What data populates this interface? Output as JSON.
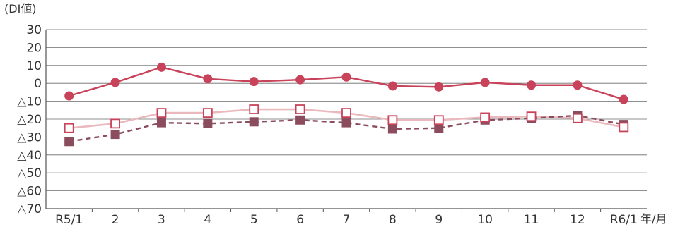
{
  "chart_data": {
    "type": "line",
    "ylabel": "(DI値)",
    "xlabel_unit": "年/月",
    "categories": [
      "R5/1",
      "2",
      "3",
      "4",
      "5",
      "6",
      "7",
      "8",
      "9",
      "10",
      "11",
      "12",
      "R6/1"
    ],
    "yticks": [
      30,
      20,
      10,
      0,
      -10,
      -20,
      -30,
      -40,
      -50,
      -60,
      -70
    ],
    "ytick_labels": [
      "30",
      "20",
      "10",
      "0",
      "△10",
      "△20",
      "△30",
      "△40",
      "△50",
      "△60",
      "△70"
    ],
    "ylim": [
      -70,
      30
    ],
    "grid": true,
    "series": [
      {
        "values": [
          -7,
          0.5,
          9,
          2.5,
          1,
          2,
          3.5,
          -1.5,
          -2,
          0.5,
          -1,
          -1,
          -9
        ],
        "color": "#c8435a",
        "dash": "solid",
        "marker": "filled-circle"
      },
      {
        "values": [
          -25,
          -22.5,
          -16.5,
          -16.5,
          -14.5,
          -14.5,
          -16.5,
          -20.5,
          -20.5,
          -19,
          -18.5,
          -19.5,
          -24.5
        ],
        "color": "#eab9bd",
        "marker_color": "#c8435a",
        "dash": "solid",
        "marker": "open-square"
      },
      {
        "values": [
          -32.5,
          -28.5,
          -22,
          -22.5,
          -21.5,
          -20.5,
          -22,
          -25.5,
          -25,
          -20.5,
          -19.5,
          -18,
          -23
        ],
        "color": "#8b4d5e",
        "dash": "dashed",
        "marker": "filled-square"
      }
    ]
  }
}
